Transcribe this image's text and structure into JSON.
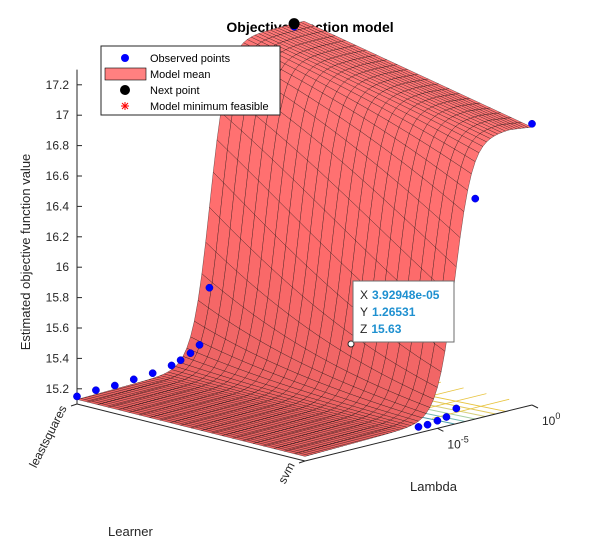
{
  "chart_data": {
    "type": "surface",
    "title": "Objective function model",
    "xlabel": "Lambda",
    "ylabel": "Learner",
    "zlabel": "Estimated objective function value",
    "x_scale": "log",
    "x_tick_labels": [
      {
        "base": "10",
        "exp": "-5",
        "value": 1e-05
      },
      {
        "base": "10",
        "exp": "0",
        "value": 1
      }
    ],
    "y_categories": [
      "leastsquares",
      "svm"
    ],
    "z_ticks": [
      "15.2",
      "15.4",
      "15.6",
      "15.8",
      "16",
      "16.2",
      "16.4",
      "16.6",
      "16.8",
      "17",
      "17.2"
    ],
    "zlim": [
      15.1,
      17.3
    ],
    "legend": {
      "placement": "top-left",
      "entries": [
        {
          "label": "Observed points",
          "marker": "circle",
          "color": "#0000ff"
        },
        {
          "label": "Model mean",
          "marker": "patch",
          "color": "#ff8080"
        },
        {
          "label": "Next point",
          "marker": "circle",
          "color": "#000000"
        },
        {
          "label": "Model minimum feasible",
          "marker": "asterisk",
          "color": "#ff0000"
        }
      ]
    },
    "surface_color": "#ff7f7f",
    "surface_edge_color": "#000000",
    "observed_points": [
      {
        "x": 1e-12,
        "learner": "leastsquares",
        "z": 15.15
      },
      {
        "x": 1e-11,
        "learner": "leastsquares",
        "z": 15.16
      },
      {
        "x": 1e-10,
        "learner": "leastsquares",
        "z": 15.16
      },
      {
        "x": 1e-09,
        "learner": "leastsquares",
        "z": 15.17
      },
      {
        "x": 1e-08,
        "learner": "leastsquares",
        "z": 15.18
      },
      {
        "x": 1e-07,
        "learner": "leastsquares",
        "z": 15.2
      },
      {
        "x": 3e-07,
        "learner": "leastsquares",
        "z": 15.22
      },
      {
        "x": 1e-06,
        "learner": "leastsquares",
        "z": 15.25
      },
      {
        "x": 3e-06,
        "learner": "leastsquares",
        "z": 15.29
      },
      {
        "x": 1e-05,
        "learner": "leastsquares",
        "z": 15.65
      },
      {
        "x": 0.01,
        "learner": "leastsquares",
        "z": 17.1
      },
      {
        "x": 0.3,
        "learner": "leastsquares",
        "z": 17.23
      },
      {
        "x": 1e-06,
        "learner": "svm",
        "z": 15.14
      },
      {
        "x": 3e-06,
        "learner": "svm",
        "z": 15.14
      },
      {
        "x": 1e-05,
        "learner": "svm",
        "z": 15.15
      },
      {
        "x": 3e-05,
        "learner": "svm",
        "z": 15.16
      },
      {
        "x": 0.0001,
        "learner": "svm",
        "z": 15.2
      },
      {
        "x": 0.001,
        "learner": "svm",
        "z": 16.55
      },
      {
        "x": 1,
        "learner": "svm",
        "z": 16.95
      }
    ],
    "next_point": {
      "x": 0.3,
      "learner": "leastsquares",
      "z": 17.25
    },
    "datatip": {
      "X_label": "X",
      "X_value": "3.92948e-05",
      "Y_label": "Y",
      "Y_value": "1.26531",
      "Z_label": "Z",
      "Z_value": "15.63"
    }
  }
}
